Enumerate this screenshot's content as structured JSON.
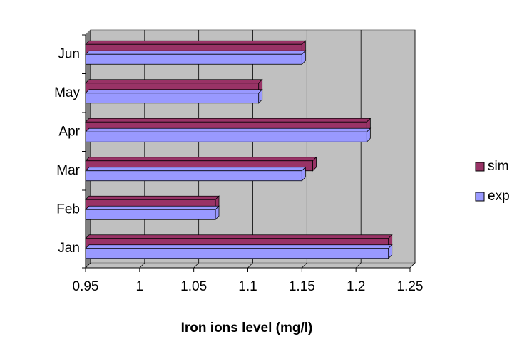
{
  "chart_data": {
    "type": "bar",
    "orientation": "horizontal",
    "x_label": "Iron ions level (mg/l)",
    "categories": [
      "Jan",
      "Feb",
      "Mar",
      "Apr",
      "May",
      "Jun"
    ],
    "series": [
      {
        "name": "sim",
        "color": "#993366",
        "values": [
          1.23,
          1.07,
          1.16,
          1.21,
          1.11,
          1.15
        ]
      },
      {
        "name": "exp",
        "color": "#9999ff",
        "values": [
          1.23,
          1.07,
          1.15,
          1.21,
          1.11,
          1.15
        ]
      }
    ],
    "xlim": [
      0.95,
      1.25
    ],
    "xticks": [
      0.95,
      1,
      1.05,
      1.1,
      1.15,
      1.2,
      1.25
    ],
    "grid": true,
    "legend": "right"
  }
}
